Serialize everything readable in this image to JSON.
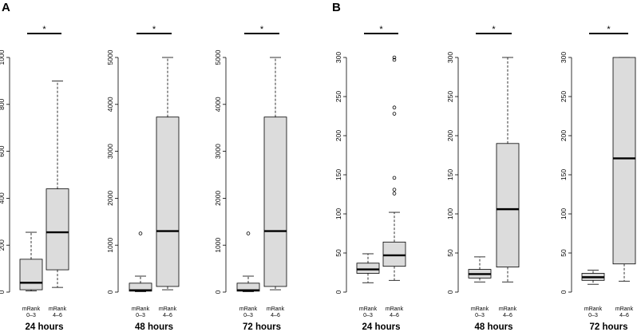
{
  "panel_labels": [
    "A",
    "B"
  ],
  "category_text": [
    [
      "mRank",
      "0–3"
    ],
    [
      "mRank",
      "4–6"
    ]
  ],
  "significance_mark": "*",
  "colors": {
    "box_fill": "#dcdcdc",
    "stroke": "#000000"
  },
  "chart_data": [
    {
      "type": "box",
      "panel": "A",
      "title": "24 hours",
      "ylim": [
        0,
        1000
      ],
      "yticks": [
        0,
        200,
        400,
        600,
        800,
        1000
      ],
      "yticklabels": [
        "0",
        "200",
        "400",
        "600",
        "800",
        "1000"
      ],
      "categories": [
        "mRank 0–3",
        "mRank 4–6"
      ],
      "boxes": [
        {
          "whisker_low": 5,
          "q1": 10,
          "median": 40,
          "q3": 140,
          "whisker_high": 255,
          "outliers": []
        },
        {
          "whisker_low": 20,
          "q1": 95,
          "median": 255,
          "q3": 440,
          "whisker_high": 900,
          "outliers": []
        }
      ],
      "significance": "*"
    },
    {
      "type": "box",
      "panel": "A",
      "title": "48 hours",
      "ylim": [
        0,
        5000
      ],
      "yticks": [
        0,
        1000,
        2000,
        3000,
        4000,
        5000
      ],
      "yticklabels": [
        "0",
        "1000",
        "2000",
        "3000",
        "4000",
        "5000"
      ],
      "categories": [
        "mRank 0–3",
        "mRank 4–6"
      ],
      "boxes": [
        {
          "whisker_low": 10,
          "q1": 20,
          "median": 40,
          "q3": 190,
          "whisker_high": 340,
          "outliers": [
            1250
          ]
        },
        {
          "whisker_low": 50,
          "q1": 120,
          "median": 1300,
          "q3": 3730,
          "whisker_high": 5000,
          "outliers": []
        }
      ],
      "significance": "*"
    },
    {
      "type": "box",
      "panel": "A",
      "title": "72 hours",
      "ylim": [
        0,
        5000
      ],
      "yticks": [
        0,
        1000,
        2000,
        3000,
        4000,
        5000
      ],
      "yticklabels": [
        "0",
        "1000",
        "2000",
        "3000",
        "4000",
        "5000"
      ],
      "categories": [
        "mRank 0–3",
        "mRank 4–6"
      ],
      "boxes": [
        {
          "whisker_low": 10,
          "q1": 20,
          "median": 40,
          "q3": 190,
          "whisker_high": 340,
          "outliers": [
            1250
          ]
        },
        {
          "whisker_low": 50,
          "q1": 120,
          "median": 1300,
          "q3": 3730,
          "whisker_high": 5000,
          "outliers": []
        }
      ],
      "significance": "*"
    },
    {
      "type": "box",
      "panel": "B",
      "title": "24 hours",
      "ylim": [
        0,
        300
      ],
      "yticks": [
        0,
        50,
        100,
        150,
        200,
        250,
        300
      ],
      "yticklabels": [
        "0",
        "50",
        "100",
        "150",
        "200",
        "250",
        "300"
      ],
      "categories": [
        "mRank 0–3",
        "mRank 4–6"
      ],
      "boxes": [
        {
          "whisker_low": 12,
          "q1": 24,
          "median": 29,
          "q3": 37,
          "whisker_high": 49,
          "outliers": []
        },
        {
          "whisker_low": 15,
          "q1": 33,
          "median": 47,
          "q3": 64,
          "whisker_high": 102,
          "outliers": [
            126,
            131,
            146,
            228,
            236,
            297,
            300
          ]
        }
      ],
      "significance": "*"
    },
    {
      "type": "box",
      "panel": "B",
      "title": "48 hours",
      "ylim": [
        0,
        300
      ],
      "yticks": [
        0,
        50,
        100,
        150,
        200,
        250,
        300
      ],
      "yticklabels": [
        "0",
        "50",
        "100",
        "150",
        "200",
        "250",
        "300"
      ],
      "categories": [
        "mRank 0–3",
        "mRank 4–6"
      ],
      "boxes": [
        {
          "whisker_low": 13,
          "q1": 18,
          "median": 23,
          "q3": 29,
          "whisker_high": 45,
          "outliers": []
        },
        {
          "whisker_low": 13,
          "q1": 32,
          "median": 106,
          "q3": 190,
          "whisker_high": 300,
          "outliers": []
        }
      ],
      "significance": "*"
    },
    {
      "type": "box",
      "panel": "B",
      "title": "72 hours",
      "ylim": [
        0,
        300
      ],
      "yticks": [
        0,
        50,
        100,
        150,
        200,
        250,
        300
      ],
      "yticklabels": [
        "0",
        "50",
        "100",
        "150",
        "200",
        "250",
        "300"
      ],
      "categories": [
        "mRank 0–3",
        "mRank 4–6"
      ],
      "boxes": [
        {
          "whisker_low": 10,
          "q1": 15,
          "median": 19,
          "q3": 24,
          "whisker_high": 28,
          "outliers": []
        },
        {
          "whisker_low": 14,
          "q1": 36,
          "median": 171,
          "q3": 300,
          "whisker_high": 300,
          "outliers": []
        }
      ],
      "significance": "*"
    }
  ]
}
